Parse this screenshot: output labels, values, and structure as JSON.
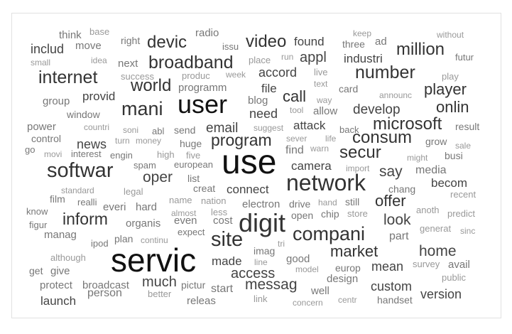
{
  "colors": {
    "big": "#111111",
    "large": "#333333",
    "mid": "#444444",
    "small": "#777777",
    "tiny": "#999999"
  },
  "words": [
    "think",
    "base",
    "right",
    "radio",
    "keep",
    "ad",
    "without",
    "includ",
    "move",
    "devic",
    "issu",
    "video",
    "found",
    "three",
    "million",
    "small",
    "idea",
    "next",
    "broadband",
    "place",
    "run",
    "appl",
    "industri",
    "futur",
    "success",
    "produc",
    "week",
    "accord",
    "live",
    "play",
    "internet",
    "world",
    "programm",
    "text",
    "number",
    "group",
    "provid",
    "file",
    "way",
    "card",
    "announc",
    "player",
    "mani",
    "user",
    "blog",
    "call",
    "allow",
    "develop",
    "onlin",
    "window",
    "need",
    "tool",
    "power",
    "countri",
    "soni",
    "abl",
    "send",
    "email",
    "suggest",
    "attack",
    "microsoft",
    "result",
    "control",
    "turn",
    "money",
    "sever",
    "life",
    "back",
    "go",
    "news",
    "program",
    "consum",
    "grow",
    "movi",
    "interest",
    "engin",
    "high",
    "huge",
    "five",
    "find",
    "warn",
    "might",
    "busi",
    "sale",
    "secur",
    "softwar",
    "spam",
    "european",
    "camera",
    "import",
    "say",
    "media",
    "use",
    "oper",
    "list",
    "chang",
    "becom",
    "standard",
    "legal",
    "creat",
    "connect",
    "network",
    "recent",
    "film",
    "realli",
    "everi",
    "name",
    "nation",
    "electron",
    "drive",
    "hand",
    "still",
    "offer",
    "know",
    "hard",
    "almost",
    "less",
    "anoth",
    "predict",
    "figur",
    "inform",
    "organis",
    "even",
    "cost",
    "open",
    "chip",
    "store",
    "look",
    "manag",
    "site",
    "digit",
    "part",
    "sinc",
    "generat",
    "ipod",
    "plan",
    "continu",
    "expect",
    "tri",
    "compani",
    "imag",
    "home",
    "although",
    "servic",
    "made",
    "line",
    "good",
    "market",
    "avail",
    "get",
    "give",
    "access",
    "model",
    "europ",
    "survey",
    "mean",
    "public",
    "much",
    "design",
    "protect",
    "broadcast",
    "pictur",
    "messag",
    "start",
    "custom",
    "person",
    "better",
    "well",
    "version",
    "launch",
    "releas",
    "link",
    "concern",
    "centr",
    "handset"
  ]
}
